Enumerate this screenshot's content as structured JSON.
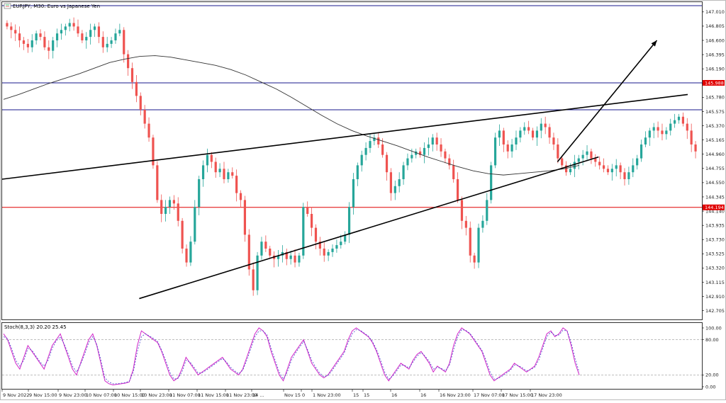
{
  "window": {
    "title": "EURJPY, M30:  Euro vs Japanese Yen",
    "icon": "chart-window-icon"
  },
  "indicator": {
    "title": "Stoch(8,3,3) 20.20 25.45",
    "levels_axis": [
      "100.00",
      "80.00",
      "20.00",
      "0.00"
    ]
  },
  "chart_data": {
    "type": "candlestick",
    "symbol": "EURJPY",
    "timeframe": "M30",
    "ylim": [
      142.6,
      147.1
    ],
    "y_ticks": [
      "147.010",
      "146.805",
      "146.600",
      "146.395",
      "146.190",
      "145.985",
      "145.780",
      "145.575",
      "145.370",
      "145.165",
      "144.960",
      "144.755",
      "144.550",
      "144.345",
      "144.140",
      "143.935",
      "143.730",
      "143.525",
      "143.320",
      "143.115",
      "142.910",
      "142.705"
    ],
    "x_ticks": [
      "9 Nov 2022",
      "9 Nov 15:00",
      "9 Nov 23:00",
      "10 Nov 07:00",
      "10 Nov 15:00",
      "10 Nov 23:00",
      "11 Nov 07:00",
      "11 Nov 15:00",
      "11 Nov 23:00",
      "14 ...",
      "Nov 15",
      "0",
      "1 Nov 23:00",
      "15",
      "15",
      "16",
      "16",
      "16 Nov 23:00",
      "17 Nov 07:00",
      "17 Nov 15:00",
      "17 Nov 23:00"
    ],
    "price_labels": [
      {
        "value": 145.988,
        "text": "145.988",
        "color": "#e00000"
      },
      {
        "value": 144.194,
        "text": "144.194",
        "color": "#e00000"
      }
    ],
    "horizontal_levels": [
      {
        "price": 147.1,
        "color": "#1a1a8c"
      },
      {
        "price": 145.988,
        "color": "#1a1a8c"
      },
      {
        "price": 145.6,
        "color": "#1a1a8c"
      },
      {
        "price": 144.194,
        "color": "#e00000"
      }
    ],
    "candles_close": [
      146.8,
      146.75,
      146.7,
      146.6,
      146.55,
      146.5,
      146.6,
      146.7,
      146.65,
      146.5,
      146.45,
      146.6,
      146.7,
      146.75,
      146.8,
      146.85,
      146.8,
      146.7,
      146.6,
      146.65,
      146.75,
      146.8,
      146.65,
      146.5,
      146.55,
      146.6,
      146.7,
      146.75,
      146.4,
      146.2,
      146.0,
      145.8,
      145.6,
      145.4,
      145.2,
      144.8,
      144.3,
      144.1,
      144.2,
      144.3,
      144.25,
      144.0,
      143.6,
      143.4,
      143.7,
      144.2,
      144.6,
      144.8,
      144.95,
      144.85,
      144.7,
      144.75,
      144.6,
      144.7,
      144.65,
      144.4,
      144.3,
      143.8,
      143.3,
      143.0,
      143.5,
      143.7,
      143.6,
      143.5,
      143.45,
      143.5,
      143.55,
      143.45,
      143.5,
      143.4,
      143.5,
      144.2,
      144.1,
      143.9,
      143.7,
      143.6,
      143.5,
      143.55,
      143.6,
      143.65,
      143.7,
      143.8,
      144.2,
      144.6,
      144.8,
      144.95,
      145.05,
      145.15,
      145.2,
      145.1,
      144.95,
      144.7,
      144.4,
      144.5,
      144.6,
      144.8,
      144.9,
      144.95,
      145.0,
      144.95,
      145.05,
      145.1,
      145.2,
      145.1,
      145.0,
      144.9,
      144.8,
      144.6,
      144.3,
      144.0,
      143.9,
      143.5,
      143.4,
      143.9,
      144.0,
      144.3,
      144.8,
      145.2,
      145.3,
      145.1,
      145.0,
      145.1,
      145.2,
      145.3,
      145.35,
      145.3,
      145.2,
      145.3,
      145.4,
      145.35,
      145.2,
      145.1,
      144.9,
      144.8,
      144.7,
      144.75,
      144.85,
      144.9,
      144.95,
      145.0,
      144.9,
      144.85,
      144.8,
      144.75,
      144.7,
      144.75,
      144.8,
      144.7,
      144.6,
      144.7,
      144.8,
      144.9,
      145.1,
      145.2,
      145.3,
      145.35,
      145.3,
      145.25,
      145.3,
      145.4,
      145.45,
      145.5,
      145.4,
      145.3,
      145.1,
      145.0
    ],
    "moving_average": [
      145.75,
      145.82,
      145.9,
      145.98,
      146.05,
      146.12,
      146.2,
      146.28,
      146.33,
      146.37,
      146.38,
      146.36,
      146.32,
      146.28,
      146.24,
      146.18,
      146.1,
      146.0,
      145.9,
      145.78,
      145.65,
      145.52,
      145.4,
      145.3,
      145.22,
      145.15,
      145.08,
      145.0,
      144.92,
      144.85,
      144.78,
      144.72,
      144.68,
      144.66,
      144.68,
      144.7,
      144.72,
      144.75,
      144.8
    ],
    "trendlines": [
      {
        "name": "upper",
        "from": [
          0,
          144.6
        ],
        "to": [
          1,
          145.82
        ]
      },
      {
        "name": "lower",
        "from": [
          0.2,
          142.88
        ],
        "to": [
          0.87,
          144.92
        ]
      },
      {
        "name": "arrow",
        "from": [
          0.81,
          144.85
        ],
        "to": [
          0.955,
          146.6
        ]
      }
    ],
    "stoch_main": [
      90,
      80,
      60,
      40,
      30,
      50,
      70,
      60,
      50,
      40,
      30,
      50,
      70,
      80,
      90,
      70,
      50,
      30,
      20,
      40,
      60,
      80,
      90,
      70,
      40,
      10,
      5,
      3,
      4,
      5,
      6,
      8,
      30,
      70,
      95,
      90,
      85,
      80,
      75,
      60,
      40,
      20,
      10,
      15,
      30,
      50,
      40,
      30,
      20,
      25,
      30,
      35,
      40,
      45,
      50,
      40,
      30,
      25,
      20,
      30,
      50,
      70,
      90,
      100,
      95,
      85,
      60,
      40,
      20,
      10,
      30,
      50,
      60,
      70,
      80,
      60,
      40,
      30,
      20,
      15,
      20,
      30,
      40,
      50,
      60,
      80,
      95,
      100,
      95,
      90,
      85,
      75,
      60,
      40,
      20,
      10,
      20,
      30,
      40,
      35,
      30,
      45,
      55,
      60,
      50,
      40,
      25,
      35,
      30,
      25,
      40,
      70,
      90,
      100,
      95,
      90,
      80,
      70,
      60,
      40,
      20,
      10,
      15,
      20,
      25,
      30,
      40,
      35,
      30,
      25,
      30,
      35,
      50,
      70,
      90,
      95,
      85,
      90,
      100,
      95,
      70,
      40,
      20
    ],
    "stoch_signal": [
      85,
      82,
      65,
      45,
      35,
      45,
      65,
      62,
      52,
      42,
      35,
      45,
      65,
      78,
      85,
      72,
      55,
      35,
      25,
      38,
      55,
      75,
      85,
      72,
      45,
      15,
      8,
      5,
      5,
      6,
      7,
      9,
      25,
      60,
      85,
      90,
      86,
      82,
      77,
      62,
      45,
      25,
      13,
      14,
      25,
      45,
      42,
      33,
      23,
      24,
      28,
      33,
      38,
      43,
      48,
      42,
      33,
      27,
      22,
      28,
      45,
      65,
      85,
      95,
      95,
      88,
      65,
      45,
      25,
      13,
      25,
      45,
      57,
      67,
      77,
      63,
      45,
      33,
      23,
      17,
      19,
      27,
      37,
      47,
      57,
      75,
      90,
      97,
      96,
      91,
      86,
      77,
      63,
      45,
      25,
      13,
      18,
      27,
      37,
      36,
      32,
      42,
      52,
      58,
      52,
      43,
      30,
      33,
      31,
      27,
      37,
      63,
      85,
      97,
      96,
      91,
      82,
      72,
      62,
      45,
      25,
      13,
      14,
      18,
      23,
      28,
      37,
      36,
      32,
      27,
      29,
      33,
      45,
      65,
      85,
      93,
      87,
      88,
      96,
      95,
      75,
      47,
      25
    ]
  }
}
